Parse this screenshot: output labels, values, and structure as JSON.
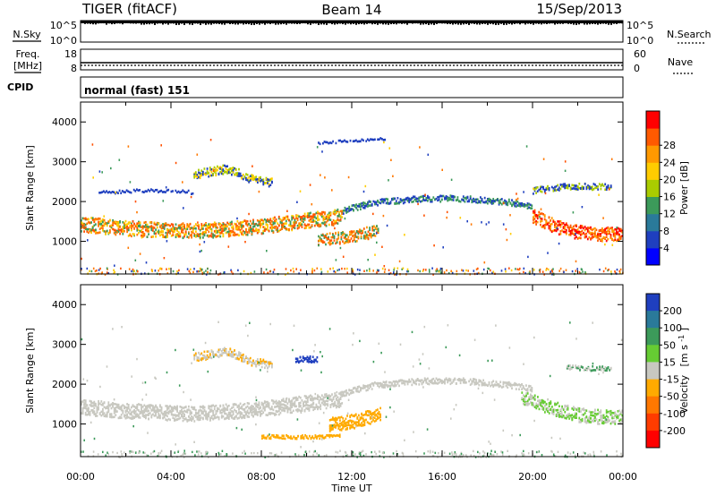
{
  "header": {
    "radar": "TIGER (fitACF)",
    "beam": "Beam 14",
    "date": "15/Sep/2013"
  },
  "summary_panels": {
    "nsky_label": "N.Sky",
    "nsky_ticks": [
      "10^5",
      "10^0"
    ],
    "nsearch_label": "N.Search",
    "nsearch_ticks": [
      "10^5",
      "10^0"
    ],
    "freq_label": "Freq.",
    "freq_unit": "[MHz]",
    "freq_ticks": [
      18,
      8
    ],
    "nave_label": "Nave",
    "nave_ticks": [
      60,
      0
    ],
    "cpid_label": "CPID",
    "cpid_value": "normal (fast) 151"
  },
  "chart_data": [
    {
      "type": "heatmap",
      "name": "power",
      "ylabel": "Slant Range [km]",
      "yticks": [
        1000,
        2000,
        3000,
        4000
      ],
      "ylim": [
        180,
        4500
      ],
      "xlim": [
        0,
        24
      ],
      "colorbar": {
        "label": "Power [dB]",
        "ticks": [
          "4",
          "8",
          "12",
          "16",
          "20",
          "24",
          "28"
        ],
        "colors": [
          "#0000ff",
          "#1f3fbf",
          "#2a7a9a",
          "#3c9a5a",
          "#aacc00",
          "#ffcc00",
          "#ff9900",
          "#ff5a00",
          "#ff0000"
        ]
      },
      "bands": [
        {
          "x": [
            0,
            2.0,
            5.0,
            8.0,
            10.0,
            11.6
          ],
          "y": [
            1450,
            1350,
            1280,
            1400,
            1550,
            1650
          ],
          "thickness": 380,
          "colors": [
            "#ff7800",
            "#ff5000",
            "#3c9a5a",
            "#ffcc00"
          ]
        },
        {
          "x": [
            11.6,
            13.0,
            15.0,
            17.0,
            19.0,
            20.0
          ],
          "y": [
            1800,
            2000,
            2100,
            2100,
            2000,
            1900
          ],
          "thickness": 150,
          "colors": [
            "#1f3fbf",
            "#3c9a5a"
          ]
        },
        {
          "x": [
            20.0,
            21.0,
            22.0,
            23.0,
            24.0
          ],
          "y": [
            1650,
            1400,
            1250,
            1200,
            1200
          ],
          "thickness": 350,
          "colors": [
            "#ff5a00",
            "#ff0000",
            "#ff9900"
          ]
        },
        {
          "x": [
            10.5,
            12.0,
            13.2
          ],
          "y": [
            1050,
            1150,
            1300
          ],
          "thickness": 300,
          "colors": [
            "#ff5a00",
            "#3c9a5a",
            "#ff9900"
          ]
        },
        {
          "x": [
            5.0,
            6.5,
            7.5,
            8.5
          ],
          "y": [
            2700,
            2850,
            2600,
            2500
          ],
          "thickness": 220,
          "colors": [
            "#aacc00",
            "#1f3fbf",
            "#ffcc00"
          ]
        },
        {
          "x": [
            20.0,
            21.5,
            23.5
          ],
          "y": [
            2300,
            2400,
            2400
          ],
          "thickness": 150,
          "colors": [
            "#1f3fbf",
            "#aacc00"
          ]
        },
        {
          "x": [
            0.8,
            2.5,
            4.0,
            5.0
          ],
          "y": [
            2250,
            2300,
            2300,
            2250
          ],
          "thickness": 80,
          "colors": [
            "#1f3fbf"
          ]
        },
        {
          "x": [
            10.5,
            12.0,
            13.5
          ],
          "y": [
            3500,
            3550,
            3600
          ],
          "thickness": 60,
          "colors": [
            "#1f3fbf"
          ]
        }
      ]
    },
    {
      "type": "heatmap",
      "name": "velocity",
      "ylabel": "Slant Range [km]",
      "xlabel": "Time UT",
      "xticks": [
        "00:00",
        "04:00",
        "08:00",
        "12:00",
        "16:00",
        "20:00",
        "00:00"
      ],
      "yticks": [
        1000,
        2000,
        3000,
        4000
      ],
      "ylim": [
        180,
        4500
      ],
      "xlim": [
        0,
        24
      ],
      "colorbar": {
        "label": "Velocity",
        "unit": "[m s",
        "unit_exp": "-1",
        "unit_end": "]",
        "ticks": [
          "200",
          "100",
          "50",
          "15",
          "-15",
          "-50",
          "-100",
          "-200"
        ],
        "colors": [
          "#1f3fbf",
          "#2a7a9a",
          "#3c9a5a",
          "#66cc33",
          "#c8c8c0",
          "#ffaa00",
          "#ff7800",
          "#ff3c00",
          "#ff0000"
        ]
      },
      "bands": [
        {
          "x": [
            0,
            2.0,
            5.0,
            8.0,
            10.0,
            11.6
          ],
          "y": [
            1450,
            1350,
            1280,
            1400,
            1550,
            1650
          ],
          "thickness": 380,
          "colors": [
            "#c8c8c0"
          ]
        },
        {
          "x": [
            11.6,
            13.0,
            15.0,
            17.0,
            19.0,
            20.0
          ],
          "y": [
            1800,
            2000,
            2100,
            2100,
            2000,
            1900
          ],
          "thickness": 150,
          "colors": [
            "#c8c8c0"
          ]
        },
        {
          "x": [
            19.5,
            21.0,
            22.0,
            23.0,
            24.0
          ],
          "y": [
            1700,
            1400,
            1250,
            1200,
            1200
          ],
          "thickness": 350,
          "colors": [
            "#66cc33",
            "#c8c8c0"
          ]
        },
        {
          "x": [
            11.0,
            12.2,
            13.3
          ],
          "y": [
            1000,
            1100,
            1300
          ],
          "thickness": 350,
          "colors": [
            "#ffaa00"
          ]
        },
        {
          "x": [
            8.0,
            10.5,
            11.5
          ],
          "y": [
            700,
            700,
            750
          ],
          "thickness": 90,
          "colors": [
            "#ffaa00"
          ]
        },
        {
          "x": [
            5.0,
            6.5,
            7.5,
            8.5
          ],
          "y": [
            2700,
            2850,
            2600,
            2500
          ],
          "thickness": 200,
          "colors": [
            "#c8c8c0",
            "#ffaa00"
          ]
        },
        {
          "x": [
            9.5,
            10.5
          ],
          "y": [
            2650,
            2650
          ],
          "thickness": 150,
          "colors": [
            "#1f3fbf"
          ]
        },
        {
          "x": [
            21.5,
            23.5
          ],
          "y": [
            2450,
            2400
          ],
          "thickness": 120,
          "colors": [
            "#3c9a5a",
            "#c8c8c0"
          ]
        }
      ]
    }
  ]
}
